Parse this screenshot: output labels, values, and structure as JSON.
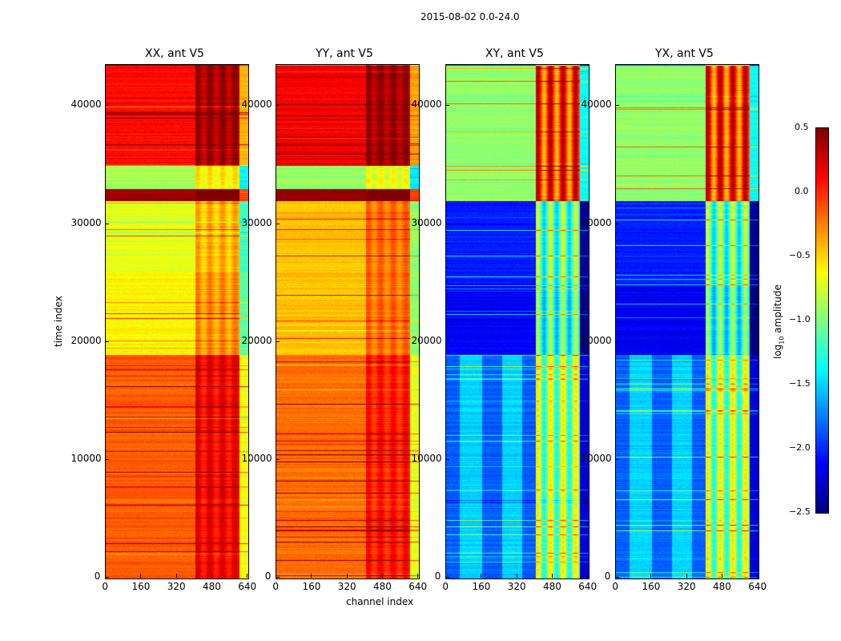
{
  "chart_data": {
    "type": "heatmap",
    "title": "2015-08-02 0.0-24.0",
    "xlabel": "channel index",
    "ylabel": "time index",
    "xlim": [
      0,
      640
    ],
    "ylim": [
      0,
      43500
    ],
    "xticks": [
      "0",
      "160",
      "320",
      "480",
      "640"
    ],
    "yticks": [
      "0",
      "10000",
      "20000",
      "30000",
      "40000"
    ],
    "colorbar": {
      "label": "log10 amplitude",
      "label_main": "log",
      "label_sub": "10",
      "label_rest": " amplitude",
      "range": [
        -2.5,
        0.5
      ],
      "ticks": [
        "0.5",
        "0.0",
        "−0.5",
        "−1.0",
        "−1.5",
        "−2.0",
        "−2.5"
      ],
      "colormap": "jet"
    },
    "panels": [
      {
        "title": "XX, ant V5",
        "segments": [
          [
            0,
            19000,
            -0.15
          ],
          [
            19000,
            26000,
            -0.6
          ],
          [
            26000,
            32000,
            -0.7
          ],
          [
            32000,
            33000,
            0.45
          ],
          [
            33000,
            35000,
            -0.9
          ],
          [
            35000,
            43500,
            0.1
          ]
        ],
        "rfi_offset": 0.4,
        "edge_offset": -0.5
      },
      {
        "title": "YY, ant V5",
        "segments": [
          [
            0,
            19000,
            -0.2
          ],
          [
            19000,
            26000,
            -0.45
          ],
          [
            26000,
            32000,
            -0.45
          ],
          [
            32000,
            33000,
            0.45
          ],
          [
            33000,
            35000,
            -0.9
          ],
          [
            35000,
            43500,
            0.15
          ]
        ],
        "rfi_offset": 0.35,
        "edge_offset": -0.5
      },
      {
        "title": "XY, ant V5",
        "segments": [
          [
            0,
            19000,
            -1.85
          ],
          [
            19000,
            25000,
            -2.15
          ],
          [
            25000,
            32000,
            -2.05
          ],
          [
            32000,
            43500,
            -0.95
          ]
        ],
        "rfi_offset": 1.3,
        "edge_offset": -0.4
      },
      {
        "title": "YX, ant V5",
        "segments": [
          [
            0,
            19000,
            -1.85
          ],
          [
            19000,
            25000,
            -2.15
          ],
          [
            25000,
            32000,
            -2.05
          ],
          [
            32000,
            43500,
            -0.95
          ]
        ],
        "rfi_offset": 1.3,
        "edge_offset": -0.4
      }
    ]
  }
}
